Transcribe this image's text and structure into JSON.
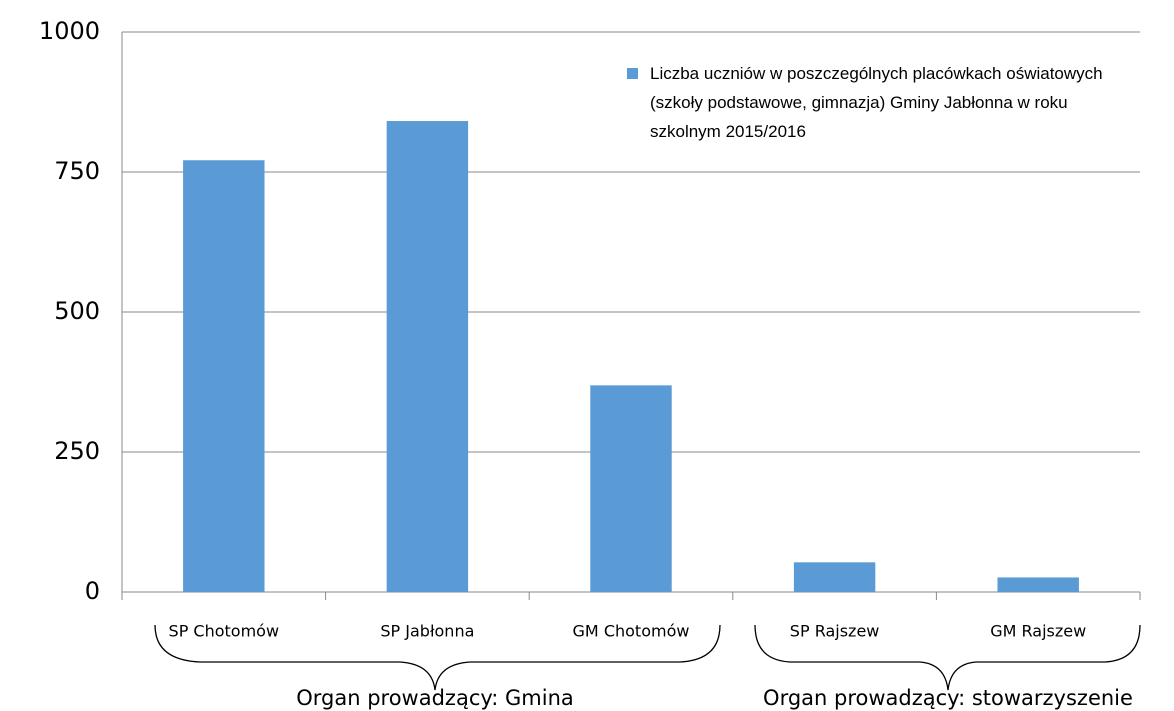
{
  "chart_data": {
    "type": "bar",
    "categories": [
      "SP Chotomów",
      "SP Jabłonna",
      "GM Chotomów",
      "SP Rajszew",
      "GM Rajszew"
    ],
    "series": [
      {
        "name": "Liczba uczniów w poszczególnych placówkach oświatowych (szkoły podstawowe, gimnazja) Gminy Jabłonna w roku szkolnym 2015/2016",
        "color": "#5b9bd5",
        "values": [
          771,
          841,
          369,
          53,
          26
        ]
      }
    ],
    "ylim": [
      0,
      1000
    ],
    "yticks": [
      0,
      250,
      500,
      750,
      1000
    ],
    "grid": true,
    "legend": "top-right",
    "annotations": [
      "Organ prowadzący: Gmina",
      "Organ prowadzący: stowarzyszenie"
    ]
  }
}
